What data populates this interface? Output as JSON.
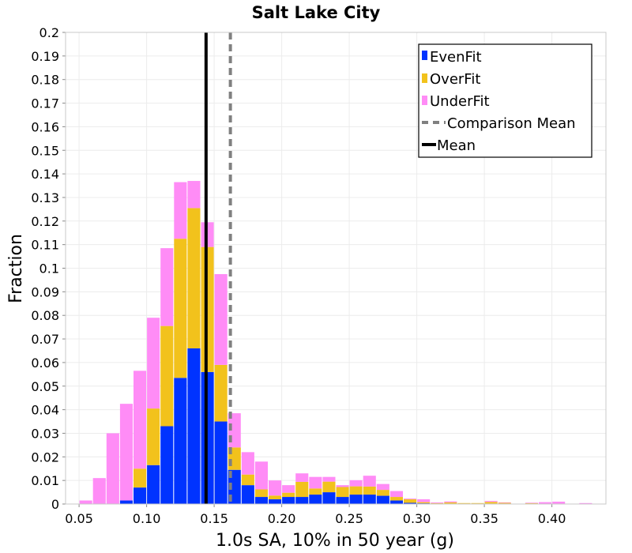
{
  "chart_data": {
    "type": "bar",
    "stacked": true,
    "title": "Salt Lake City",
    "xlabel": "1.0s SA, 10% in 50 year (g)",
    "ylabel": "Fraction",
    "xlim": [
      0.04,
      0.44
    ],
    "ylim": [
      0,
      0.2
    ],
    "bin_width": 0.01,
    "x_ticks": [
      "0.05",
      "0.10",
      "0.15",
      "0.20",
      "0.25",
      "0.30",
      "0.35",
      "0.40"
    ],
    "y_ticks": [
      "0",
      "0.01",
      "0.02",
      "0.03",
      "0.04",
      "0.05",
      "0.06",
      "0.07",
      "0.08",
      "0.09",
      "0.1",
      "0.11",
      "0.12",
      "0.13",
      "0.14",
      "0.15",
      "0.16",
      "0.17",
      "0.18",
      "0.19",
      "0.2"
    ],
    "x": [
      0.055,
      0.065,
      0.075,
      0.085,
      0.095,
      0.105,
      0.115,
      0.125,
      0.135,
      0.145,
      0.155,
      0.165,
      0.175,
      0.185,
      0.195,
      0.205,
      0.215,
      0.225,
      0.235,
      0.245,
      0.255,
      0.265,
      0.275,
      0.285,
      0.295,
      0.305,
      0.315,
      0.325,
      0.335,
      0.345,
      0.355,
      0.365,
      0.375,
      0.385,
      0.395,
      0.405,
      0.415,
      0.425
    ],
    "series": [
      {
        "name": "EvenFit",
        "color": "#0033ff",
        "values": [
          0,
          0,
          0,
          0.0015,
          0.007,
          0.0165,
          0.033,
          0.0535,
          0.066,
          0.056,
          0.035,
          0.0145,
          0.008,
          0.003,
          0.002,
          0.003,
          0.003,
          0.004,
          0.005,
          0.003,
          0.004,
          0.004,
          0.0035,
          0.0015,
          0.0005,
          0.0003,
          0.0002,
          0.0002,
          0.0002,
          0.0002,
          0.0002,
          0.0002,
          0,
          0.0002,
          0,
          0,
          0,
          0
        ]
      },
      {
        "name": "OverFit",
        "color": "#f2c21c",
        "values": [
          0,
          0,
          0,
          0,
          0.008,
          0.024,
          0.0425,
          0.059,
          0.0595,
          0.053,
          0.024,
          0.0095,
          0.0045,
          0.0032,
          0.0016,
          0.0018,
          0.0064,
          0.0026,
          0.0045,
          0.0042,
          0.0035,
          0.0034,
          0.0025,
          0.0015,
          0.0015,
          0.0005,
          0.0002,
          0.0005,
          0.0002,
          0.0002,
          0.0007,
          0.0003,
          0,
          0.0002,
          0,
          0,
          0,
          0
        ]
      },
      {
        "name": "UnderFit",
        "color": "#ff8cf6",
        "values": [
          0.0015,
          0.011,
          0.03,
          0.041,
          0.0415,
          0.0385,
          0.033,
          0.024,
          0.0115,
          0.0105,
          0.0385,
          0.0145,
          0.0095,
          0.0118,
          0.0064,
          0.0032,
          0.0036,
          0.0049,
          0.002,
          0.0008,
          0.0026,
          0.0046,
          0.0025,
          0.0025,
          0.0003,
          0.0012,
          0.0003,
          0.0004,
          0,
          0,
          0.0004,
          0.0002,
          0,
          0.0002,
          0.0008,
          0.001,
          0.0001,
          0.0004
        ]
      }
    ],
    "lines": [
      {
        "name": "Comparison Mean",
        "x": 0.162,
        "color": "#808080",
        "style": "dashed"
      },
      {
        "name": "Mean",
        "x": 0.144,
        "color": "#000000",
        "style": "solid"
      }
    ],
    "legend": {
      "position": "top-right",
      "entries": [
        "EvenFit",
        "OverFit",
        "UnderFit",
        "Comparison Mean",
        "Mean"
      ]
    },
    "grid": true
  }
}
